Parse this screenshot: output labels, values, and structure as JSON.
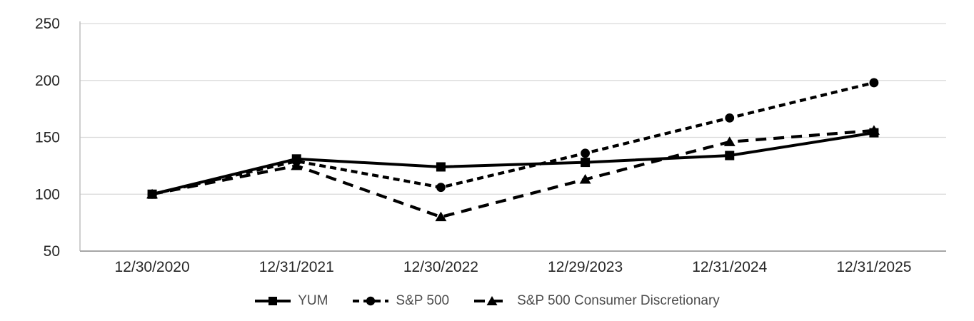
{
  "chart_data": {
    "type": "line",
    "title": "",
    "xlabel": "",
    "ylabel": "",
    "categories": [
      "12/30/2020",
      "12/31/2021",
      "12/30/2022",
      "12/29/2023",
      "12/31/2024",
      "12/31/2025"
    ],
    "series": [
      {
        "name": "YUM",
        "marker": "square",
        "line_style": "solid",
        "values": [
          100,
          131,
          124,
          128,
          134,
          154
        ]
      },
      {
        "name": "S&P 500",
        "marker": "circle",
        "line_style": "dash",
        "values": [
          100,
          129,
          106,
          136,
          167,
          198
        ]
      },
      {
        "name": "S&P 500 Consumer Discretionary",
        "marker": "triangle",
        "line_style": "long-dash",
        "values": [
          100,
          125,
          80,
          113,
          146,
          156
        ]
      }
    ],
    "ylim": [
      50,
      250
    ],
    "yticks": [
      50,
      100,
      150,
      200,
      250
    ],
    "grid": "horizontal",
    "legend_position": "bottom",
    "colors": {
      "series_line": "#000000",
      "gridline": "#d9d9d9",
      "bottom_axis_line": "#a6a6a6",
      "left_axis_line": "#bfbfbf",
      "tick_label": "#262626",
      "legend_label": "#4d4d4d",
      "background": "#ffffff"
    }
  }
}
